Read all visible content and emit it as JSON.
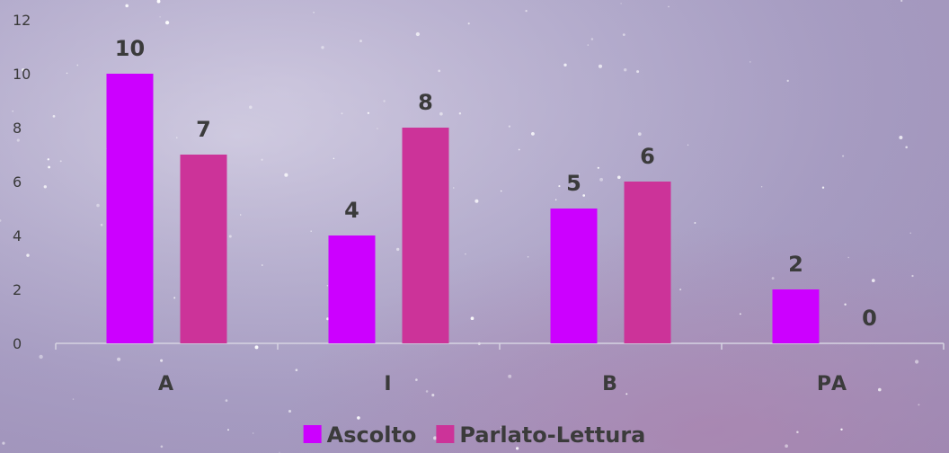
{
  "chart_data": {
    "type": "bar",
    "categories": [
      "A",
      "I",
      "B",
      "PA"
    ],
    "series": [
      {
        "name": "Ascolto",
        "values": [
          10,
          4,
          5,
          2
        ],
        "color": "#cc00ff"
      },
      {
        "name": "Parlato-Lettura",
        "values": [
          7,
          8,
          6,
          0
        ],
        "color": "#cc3399"
      }
    ],
    "title": "",
    "xlabel": "",
    "ylabel": "",
    "ylim": [
      0,
      12
    ],
    "yticks": [
      "0",
      "2",
      "4",
      "6",
      "8",
      "10",
      "12"
    ],
    "grid": false,
    "legend_position": "bottom"
  }
}
